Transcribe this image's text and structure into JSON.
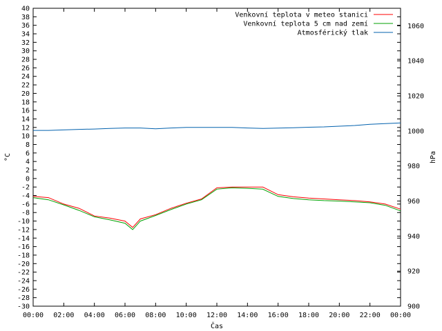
{
  "chart_data": {
    "type": "line",
    "xlabel": "Čas",
    "ylabel": "°C",
    "y2label": "hPa",
    "x_ticks": [
      "00:00",
      "02:00",
      "04:00",
      "06:00",
      "08:00",
      "10:00",
      "12:00",
      "14:00",
      "16:00",
      "18:00",
      "20:00",
      "22:00",
      "00:00"
    ],
    "x_range_hours": [
      0,
      24
    ],
    "ylim": [
      -30,
      40
    ],
    "y_ticks": [
      40,
      38,
      36,
      34,
      32,
      30,
      28,
      26,
      24,
      22,
      20,
      18,
      16,
      14,
      12,
      10,
      8,
      6,
      4,
      2,
      0,
      -2,
      -4,
      -6,
      -8,
      -10,
      -12,
      -14,
      -16,
      -18,
      -20,
      -22,
      -24,
      -26,
      -28,
      -30
    ],
    "y2lim": [
      900,
      1070
    ],
    "y2_ticks": [
      1060,
      1040,
      1020,
      1000,
      980,
      960,
      940,
      920,
      900
    ],
    "legend_position": "top-right",
    "grid": false,
    "series": [
      {
        "name": "Venkovní teplota v meteo stanici",
        "axis": "y",
        "color": "#ff0000",
        "x": [
          0,
          1,
          2,
          3,
          4,
          5,
          6,
          6.5,
          7,
          8,
          9,
          10,
          11,
          12,
          13,
          14,
          15,
          16,
          17,
          18,
          19,
          20,
          21,
          22,
          23,
          24
        ],
        "values": [
          -4.2,
          -4.5,
          -6,
          -7,
          -8.8,
          -9.3,
          -10,
          -11.5,
          -9.5,
          -8.5,
          -7,
          -5.8,
          -4.8,
          -2.2,
          -2,
          -2,
          -2,
          -3.8,
          -4.3,
          -4.6,
          -4.8,
          -5,
          -5.2,
          -5.5,
          -6,
          -7.2
        ]
      },
      {
        "name": "Venkovní teplota 5 cm nad zemí",
        "axis": "y",
        "color": "#00a000",
        "x": [
          0,
          1,
          2,
          3,
          4,
          5,
          6,
          6.5,
          7,
          8,
          9,
          10,
          11,
          12,
          13,
          14,
          15,
          16,
          17,
          18,
          19,
          20,
          21,
          22,
          23,
          24
        ],
        "values": [
          -4.5,
          -5,
          -6.2,
          -7.5,
          -9,
          -9.7,
          -10.5,
          -12,
          -10,
          -8.7,
          -7.3,
          -6,
          -5,
          -2.5,
          -2.2,
          -2.3,
          -2.5,
          -4.2,
          -4.7,
          -5,
          -5.2,
          -5.3,
          -5.5,
          -5.7,
          -6.3,
          -7.6
        ]
      },
      {
        "name": "Atmosférický tlak",
        "axis": "y2",
        "color": "#0060ad",
        "x": [
          0,
          1,
          2,
          3,
          4,
          5,
          6,
          7,
          8,
          9,
          10,
          11,
          12,
          13,
          14,
          15,
          16,
          17,
          18,
          19,
          20,
          21,
          22,
          23,
          24
        ],
        "values": [
          1000.3,
          1000.3,
          1000.6,
          1000.9,
          1001.1,
          1001.4,
          1001.7,
          1001.7,
          1001.2,
          1001.7,
          1002,
          1002,
          1002,
          1002,
          1001.7,
          1001.4,
          1001.6,
          1001.8,
          1002.1,
          1002.3,
          1002.7,
          1003.1,
          1003.8,
          1004.2,
          1004.6
        ]
      }
    ]
  }
}
